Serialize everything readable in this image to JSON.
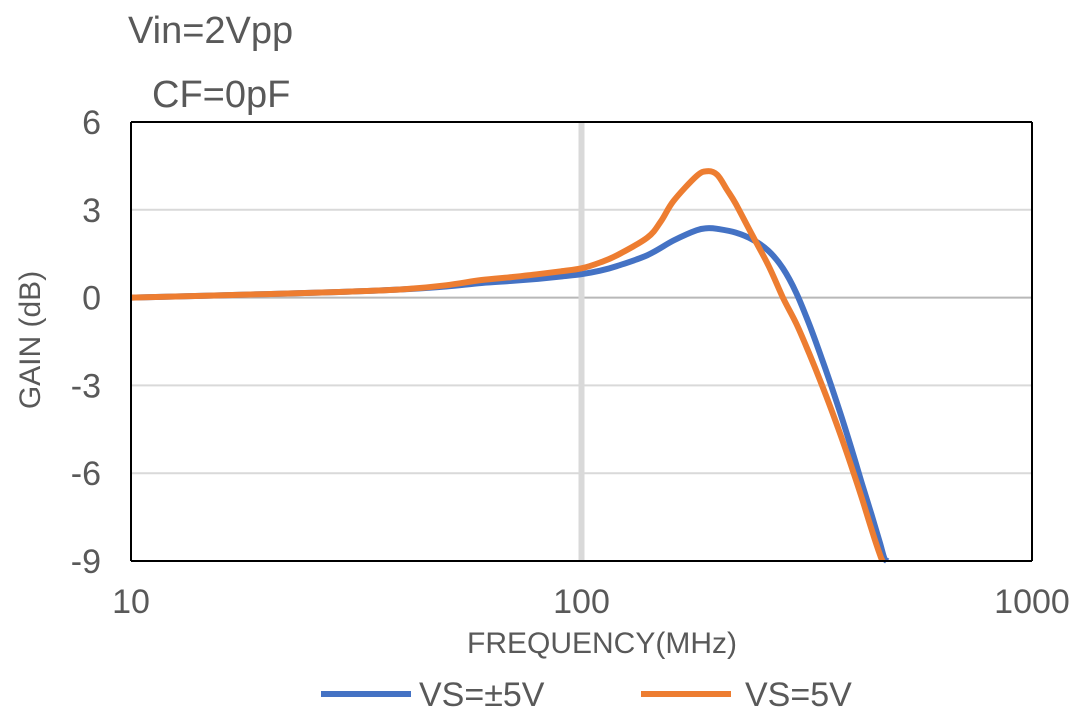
{
  "chart_data": {
    "type": "line",
    "annotations": [
      "Vin=2Vpp",
      "CF=0pF"
    ],
    "xlabel": "FREQUENCY(MHz)",
    "ylabel": "GAIN (dB)",
    "xscale": "log",
    "xlim": [
      10,
      1000
    ],
    "ylim": [
      -9,
      6
    ],
    "xticks": [
      10,
      100,
      1000
    ],
    "xtick_labels": [
      "10",
      "100",
      "1000"
    ],
    "yticks": [
      6,
      3,
      0,
      -3,
      -6,
      -9
    ],
    "ytick_labels": [
      "6",
      "3",
      "0",
      "-3",
      "-6",
      "-9"
    ],
    "grid": true,
    "legend_position": "bottom",
    "series": [
      {
        "name": "VS=±5V",
        "color": "#4472C4",
        "x": [
          10,
          20,
          30,
          40,
          50,
          60,
          70,
          80,
          90,
          100,
          110,
          120,
          140,
          160,
          180,
          190,
          200,
          220,
          240,
          260,
          280,
          300,
          320,
          340,
          360,
          380,
          400,
          420,
          440,
          460,
          470,
          477
        ],
        "y": [
          0,
          0.12,
          0.2,
          0.28,
          0.38,
          0.5,
          0.57,
          0.64,
          0.72,
          0.8,
          0.92,
          1.08,
          1.45,
          1.95,
          2.3,
          2.37,
          2.35,
          2.22,
          1.98,
          1.6,
          1.0,
          0.15,
          -0.9,
          -2.0,
          -3.1,
          -4.2,
          -5.3,
          -6.4,
          -7.4,
          -8.4,
          -8.9,
          -9.0
        ]
      },
      {
        "name": "VS=5V",
        "color": "#ED7D31",
        "x": [
          10,
          20,
          30,
          40,
          50,
          60,
          70,
          80,
          90,
          100,
          110,
          120,
          140,
          150,
          160,
          180,
          190,
          200,
          210,
          220,
          240,
          260,
          280,
          300,
          320,
          340,
          360,
          380,
          400,
          420,
          440,
          460,
          466
        ],
        "y": [
          0,
          0.12,
          0.2,
          0.28,
          0.42,
          0.6,
          0.7,
          0.8,
          0.9,
          1.0,
          1.2,
          1.45,
          2.05,
          2.6,
          3.3,
          4.15,
          4.32,
          4.2,
          3.7,
          3.2,
          2.1,
          1.1,
          0.0,
          -0.9,
          -1.9,
          -2.9,
          -3.9,
          -4.9,
          -5.9,
          -6.9,
          -7.9,
          -8.8,
          -9.0
        ]
      }
    ]
  }
}
